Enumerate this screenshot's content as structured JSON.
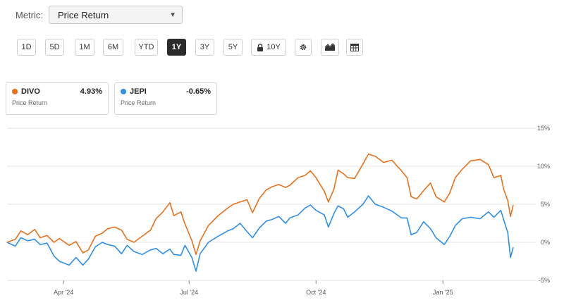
{
  "metric": {
    "label": "Metric:",
    "value": "Price Return",
    "caret_icon": "caret-down-icon"
  },
  "ranges": [
    {
      "label": "1D",
      "active": false
    },
    {
      "label": "5D",
      "active": false
    },
    {
      "label": "1M",
      "active": false
    },
    {
      "label": "6M",
      "active": false
    },
    {
      "label": "YTD",
      "active": false
    },
    {
      "label": "1Y",
      "active": true
    },
    {
      "label": "3Y",
      "active": false
    },
    {
      "label": "5Y",
      "active": false
    },
    {
      "label": "10Y",
      "active": false
    }
  ],
  "toolbar_icons": [
    "gear-icon",
    "chart-type-icon",
    "table-icon"
  ],
  "legend": [
    {
      "ticker": "DIVO",
      "value": "4.93%",
      "sub": "Price Return",
      "color": "#e8711c"
    },
    {
      "ticker": "JEPI",
      "value": "-0.65%",
      "sub": "Price Return",
      "color": "#2f8fe8"
    }
  ],
  "chart_data": {
    "type": "line",
    "title": "",
    "xlabel": "",
    "ylabel": "",
    "x_range": [
      "2024-02-20",
      "2025-02-21"
    ],
    "ylim": [
      -5,
      15
    ],
    "y_ticks": [
      {
        "value": 15,
        "label": "15%"
      },
      {
        "value": 10,
        "label": "10%"
      },
      {
        "value": 5,
        "label": "5%"
      },
      {
        "value": 0,
        "label": "0%"
      },
      {
        "value": -5,
        "label": "-5%"
      }
    ],
    "x_ticks": [
      {
        "date": "2024-04-01",
        "label": "Apr '24"
      },
      {
        "date": "2024-07-01",
        "label": "Jul '24"
      },
      {
        "date": "2024-10-01",
        "label": "Oct '24"
      },
      {
        "date": "2025-01-01",
        "label": "Jan '25"
      }
    ],
    "grid": true,
    "series": [
      {
        "name": "DIVO",
        "color": "#e8711c",
        "points": [
          [
            "2024-02-20",
            0.0
          ],
          [
            "2024-02-26",
            0.4
          ],
          [
            "2024-03-01",
            1.5
          ],
          [
            "2024-03-06",
            1.0
          ],
          [
            "2024-03-11",
            1.7
          ],
          [
            "2024-03-15",
            0.6
          ],
          [
            "2024-03-20",
            0.9
          ],
          [
            "2024-03-25",
            0.0
          ],
          [
            "2024-03-29",
            0.5
          ],
          [
            "2024-04-05",
            -0.4
          ],
          [
            "2024-04-10",
            0.1
          ],
          [
            "2024-04-15",
            -1.4
          ],
          [
            "2024-04-19",
            -1.0
          ],
          [
            "2024-04-24",
            0.8
          ],
          [
            "2024-04-29",
            1.2
          ],
          [
            "2024-05-03",
            1.8
          ],
          [
            "2024-05-08",
            2.0
          ],
          [
            "2024-05-13",
            1.6
          ],
          [
            "2024-05-17",
            0.4
          ],
          [
            "2024-05-22",
            0.0
          ],
          [
            "2024-05-28",
            0.8
          ],
          [
            "2024-06-03",
            1.6
          ],
          [
            "2024-06-07",
            3.1
          ],
          [
            "2024-06-12",
            4.0
          ],
          [
            "2024-06-17",
            5.2
          ],
          [
            "2024-06-20",
            3.5
          ],
          [
            "2024-06-25",
            4.0
          ],
          [
            "2024-06-28",
            2.4
          ],
          [
            "2024-07-03",
            0.2
          ],
          [
            "2024-07-06",
            -1.6
          ],
          [
            "2024-07-09",
            0.2
          ],
          [
            "2024-07-15",
            2.2
          ],
          [
            "2024-07-22",
            3.5
          ],
          [
            "2024-07-29",
            4.5
          ],
          [
            "2024-08-02",
            5.0
          ],
          [
            "2024-08-07",
            5.3
          ],
          [
            "2024-08-12",
            5.6
          ],
          [
            "2024-08-16",
            3.9
          ],
          [
            "2024-08-21",
            5.8
          ],
          [
            "2024-08-26",
            6.9
          ],
          [
            "2024-08-30",
            7.3
          ],
          [
            "2024-09-04",
            7.6
          ],
          [
            "2024-09-09",
            7.2
          ],
          [
            "2024-09-12",
            7.5
          ],
          [
            "2024-09-18",
            8.5
          ],
          [
            "2024-09-23",
            8.8
          ],
          [
            "2024-09-27",
            9.4
          ],
          [
            "2024-10-01",
            8.5
          ],
          [
            "2024-10-07",
            6.7
          ],
          [
            "2024-10-10",
            5.3
          ],
          [
            "2024-10-14",
            7.0
          ],
          [
            "2024-10-17",
            9.5
          ],
          [
            "2024-10-21",
            9.0
          ],
          [
            "2024-10-24",
            8.5
          ],
          [
            "2024-10-29",
            8.4
          ],
          [
            "2024-11-04",
            10.3
          ],
          [
            "2024-11-08",
            11.6
          ],
          [
            "2024-11-13",
            11.3
          ],
          [
            "2024-11-19",
            10.5
          ],
          [
            "2024-11-25",
            10.8
          ],
          [
            "2024-12-02",
            9.4
          ],
          [
            "2024-12-06",
            8.5
          ],
          [
            "2024-12-09",
            6.0
          ],
          [
            "2024-12-13",
            5.7
          ],
          [
            "2024-12-18",
            6.8
          ],
          [
            "2024-12-23",
            7.8
          ],
          [
            "2024-12-27",
            6.0
          ],
          [
            "2025-01-02",
            5.3
          ],
          [
            "2025-01-06",
            6.5
          ],
          [
            "2025-01-10",
            8.5
          ],
          [
            "2025-01-15",
            9.6
          ],
          [
            "2025-01-21",
            10.7
          ],
          [
            "2025-01-28",
            10.9
          ],
          [
            "2025-02-03",
            10.2
          ],
          [
            "2025-02-07",
            8.5
          ],
          [
            "2025-02-12",
            8.8
          ],
          [
            "2025-02-14",
            7.0
          ],
          [
            "2025-02-17",
            5.5
          ],
          [
            "2025-02-19",
            3.4
          ],
          [
            "2025-02-21",
            4.9
          ]
        ]
      },
      {
        "name": "JEPI",
        "color": "#2f8fe8",
        "points": [
          [
            "2024-02-20",
            0.0
          ],
          [
            "2024-02-26",
            -0.5
          ],
          [
            "2024-03-01",
            0.6
          ],
          [
            "2024-03-06",
            0.2
          ],
          [
            "2024-03-11",
            0.4
          ],
          [
            "2024-03-15",
            -0.3
          ],
          [
            "2024-03-20",
            -0.1
          ],
          [
            "2024-03-25",
            -1.8
          ],
          [
            "2024-03-29",
            -2.5
          ],
          [
            "2024-04-05",
            -3.0
          ],
          [
            "2024-04-10",
            -2.0
          ],
          [
            "2024-04-15",
            -3.0
          ],
          [
            "2024-04-19",
            -2.2
          ],
          [
            "2024-04-24",
            -0.6
          ],
          [
            "2024-04-29",
            0.0
          ],
          [
            "2024-05-03",
            -0.3
          ],
          [
            "2024-05-08",
            -0.5
          ],
          [
            "2024-05-13",
            -1.5
          ],
          [
            "2024-05-17",
            -0.4
          ],
          [
            "2024-05-22",
            -1.2
          ],
          [
            "2024-05-28",
            -1.6
          ],
          [
            "2024-06-03",
            -1.0
          ],
          [
            "2024-06-07",
            -0.8
          ],
          [
            "2024-06-12",
            -1.5
          ],
          [
            "2024-06-17",
            -0.9
          ],
          [
            "2024-06-20",
            -1.6
          ],
          [
            "2024-06-25",
            -1.7
          ],
          [
            "2024-06-28",
            -0.4
          ],
          [
            "2024-07-03",
            -2.0
          ],
          [
            "2024-07-06",
            -3.8
          ],
          [
            "2024-07-09",
            -1.5
          ],
          [
            "2024-07-15",
            0.0
          ],
          [
            "2024-07-22",
            0.8
          ],
          [
            "2024-07-29",
            1.5
          ],
          [
            "2024-08-02",
            1.8
          ],
          [
            "2024-08-07",
            2.5
          ],
          [
            "2024-08-12",
            1.4
          ],
          [
            "2024-08-16",
            0.6
          ],
          [
            "2024-08-21",
            1.9
          ],
          [
            "2024-08-26",
            2.8
          ],
          [
            "2024-08-30",
            3.0
          ],
          [
            "2024-09-04",
            3.4
          ],
          [
            "2024-09-09",
            2.5
          ],
          [
            "2024-09-12",
            3.2
          ],
          [
            "2024-09-18",
            3.6
          ],
          [
            "2024-09-23",
            4.5
          ],
          [
            "2024-09-27",
            4.9
          ],
          [
            "2024-10-01",
            4.2
          ],
          [
            "2024-10-07",
            3.6
          ],
          [
            "2024-10-10",
            2.0
          ],
          [
            "2024-10-14",
            3.8
          ],
          [
            "2024-10-17",
            4.8
          ],
          [
            "2024-10-21",
            4.4
          ],
          [
            "2024-10-24",
            3.3
          ],
          [
            "2024-10-29",
            4.0
          ],
          [
            "2024-11-04",
            5.0
          ],
          [
            "2024-11-08",
            6.1
          ],
          [
            "2024-11-13",
            5.0
          ],
          [
            "2024-11-19",
            4.6
          ],
          [
            "2024-11-25",
            4.1
          ],
          [
            "2024-12-02",
            3.2
          ],
          [
            "2024-12-06",
            3.2
          ],
          [
            "2024-12-09",
            1.0
          ],
          [
            "2024-12-13",
            1.3
          ],
          [
            "2024-12-18",
            2.7
          ],
          [
            "2024-12-23",
            1.8
          ],
          [
            "2024-12-27",
            0.6
          ],
          [
            "2025-01-02",
            -0.3
          ],
          [
            "2025-01-06",
            0.8
          ],
          [
            "2025-01-10",
            2.2
          ],
          [
            "2025-01-15",
            3.1
          ],
          [
            "2025-01-21",
            3.3
          ],
          [
            "2025-01-28",
            3.1
          ],
          [
            "2025-02-03",
            4.0
          ],
          [
            "2025-02-07",
            3.3
          ],
          [
            "2025-02-12",
            4.2
          ],
          [
            "2025-02-14",
            3.0
          ],
          [
            "2025-02-17",
            1.3
          ],
          [
            "2025-02-19",
            -2.0
          ],
          [
            "2025-02-21",
            -0.65
          ]
        ]
      }
    ]
  }
}
